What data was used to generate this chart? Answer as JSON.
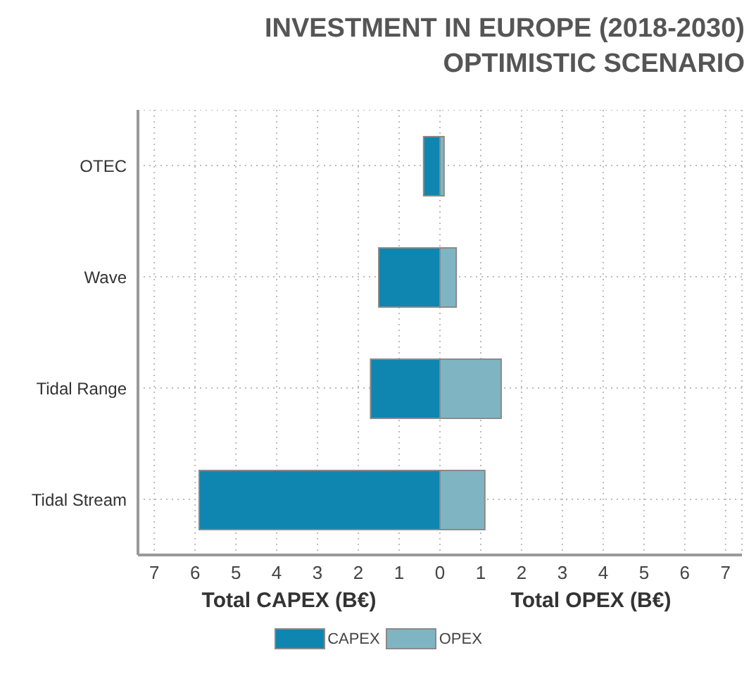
{
  "chart_data": {
    "type": "bar",
    "orientation": "horizontal",
    "stacked": true,
    "title": "INVESTMENT IN EUROPE (2018-2030)",
    "subtitle": "OPTIMISTIC SCENARIO",
    "xlabel": "Total CAPEX (B€)",
    "annotations": [
      "Total OPEX (B€)"
    ],
    "categories": [
      "OTEC",
      "Wave",
      "Tidal Range",
      "Tidal Stream"
    ],
    "series": [
      {
        "name": "CAPEX",
        "color": "#0e86b0",
        "values": [
          -0.4,
          -1.5,
          -1.7,
          -5.9
        ]
      },
      {
        "name": "OPEX",
        "color": "#7fb5c3",
        "values": [
          0.1,
          0.4,
          1.5,
          1.1
        ]
      }
    ],
    "xlim": [
      -7.4,
      7.4
    ],
    "xticks": [
      {
        "value": -7,
        "label": "7"
      },
      {
        "value": -6,
        "label": "6"
      },
      {
        "value": -5,
        "label": "5"
      },
      {
        "value": -4,
        "label": "4"
      },
      {
        "value": -3,
        "label": "3"
      },
      {
        "value": -2,
        "label": "2"
      },
      {
        "value": -1,
        "label": "1"
      },
      0,
      1,
      2,
      3,
      4,
      5,
      6,
      7
    ],
    "grid": true,
    "legend": "bottom"
  }
}
